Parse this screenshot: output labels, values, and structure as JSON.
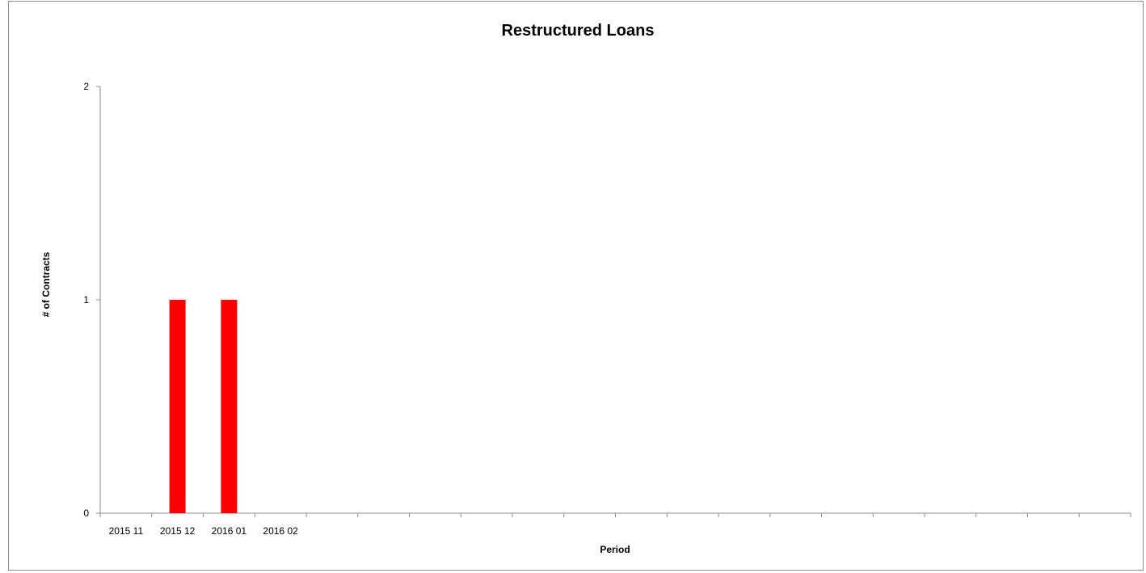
{
  "chart_data": {
    "type": "bar",
    "title": "Restructured Loans",
    "xlabel": "Period",
    "ylabel": "# of Contracts",
    "categories": [
      "2015 11",
      "2015 12",
      "2016 01",
      "2016 02",
      "",
      "",
      "",
      "",
      "",
      "",
      "",
      "",
      "",
      "",
      "",
      "",
      "",
      "",
      "",
      ""
    ],
    "series": [
      {
        "values": [
          0,
          1,
          1,
          0,
          0,
          0,
          0,
          0,
          0,
          0,
          0,
          0,
          0,
          0,
          0,
          0,
          0,
          0,
          0,
          0
        ],
        "color": "#ff0000"
      }
    ],
    "ylim": [
      0,
      2
    ],
    "yticks": [
      0,
      1,
      2
    ],
    "grid": false,
    "legend": "none"
  }
}
